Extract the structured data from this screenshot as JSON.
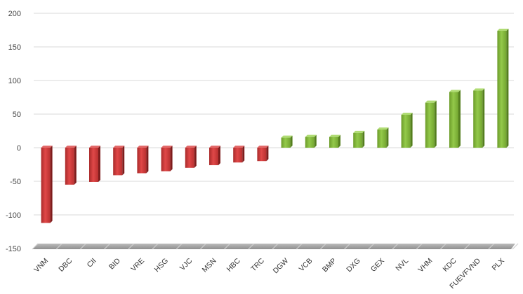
{
  "chart_data": {
    "type": "bar",
    "title": "",
    "xlabel": "",
    "ylabel": "",
    "ylim": [
      -150,
      200
    ],
    "yticks": [
      -150,
      -100,
      -50,
      0,
      50,
      100,
      150,
      200
    ],
    "grid": true,
    "categories": [
      "VNM",
      "DBC",
      "CII",
      "BID",
      "VRE",
      "HSG",
      "VJC",
      "MSN",
      "HBC",
      "TRC",
      "DGW",
      "VCB",
      "BMP",
      "DXG",
      "GEX",
      "NVL",
      "VHM",
      "KDC",
      "FUEVFVND",
      "PLX"
    ],
    "values": [
      -112,
      -55,
      -51,
      -41,
      -38,
      -35,
      -30,
      -26,
      -22,
      -20,
      15,
      16,
      16,
      22,
      27,
      49,
      67,
      83,
      85,
      174
    ],
    "colors": {
      "negative": "#c73a3a",
      "positive": "#7fb239",
      "floor": "#a6a6a6",
      "grid": "#d9d9d9"
    }
  }
}
